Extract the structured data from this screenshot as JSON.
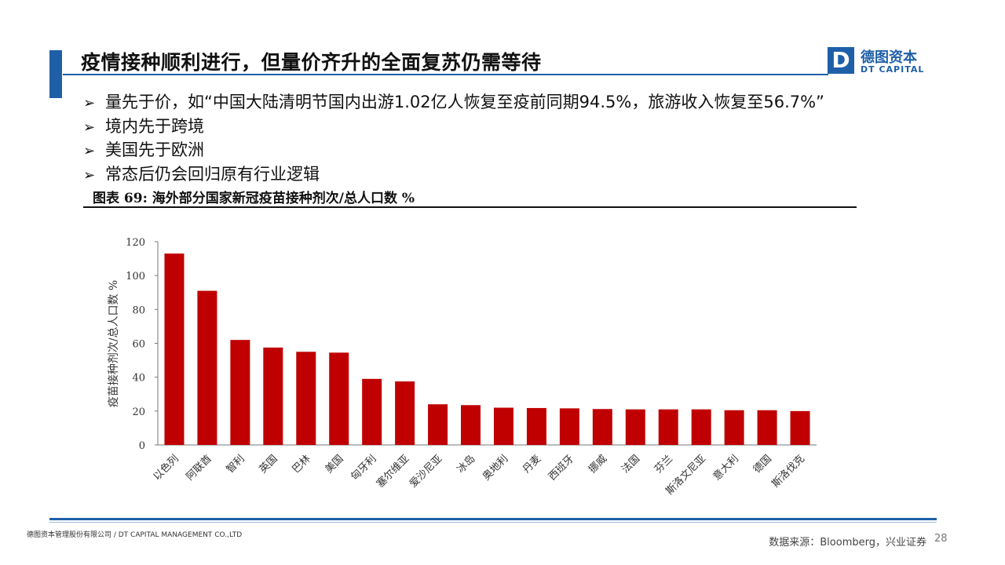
{
  "slide": {
    "title": "疫情接种顺利进行，但量价齐升的全面复苏仍需等待",
    "bullet_marker": "➢",
    "bullets": [
      "量先于价，如“中国大陆清明节国内出游1.02亿人恢复至疫前同期94.5%，旅游收入恢复至56.7%”",
      "境内先于跨境",
      "美国先于欧洲",
      "常态后仍会回归原有行业逻辑"
    ],
    "figure_caption": "图表 69:  海外部分国家新冠疫苗接种剂次/总人口数  %",
    "footer_left": "德图资本管理股份有限公司 / DT CAPITAL MANAGEMENT CO.,LTD",
    "source": "数据来源：Bloomberg，兴业证券",
    "page_number": "28"
  },
  "logo": {
    "mark": "D",
    "cn": "德图资本",
    "en": "DT CAPITAL",
    "color": "#1f5fa8"
  },
  "colors": {
    "accent": "#1f5fa8",
    "bar": "#c00000"
  },
  "chart_data": {
    "type": "bar",
    "ylabel": "疫苗接种剂次/总人口数  %",
    "ylim": [
      0,
      120
    ],
    "yticks": [
      0,
      20,
      40,
      60,
      80,
      100,
      120
    ],
    "categories": [
      "以色列",
      "阿联酋",
      "智利",
      "英国",
      "巴林",
      "美国",
      "匈牙利",
      "塞尔维亚",
      "爱沙尼亚",
      "冰岛",
      "奥地利",
      "丹麦",
      "西班牙",
      "挪威",
      "法国",
      "芬兰",
      "斯洛文尼亚",
      "意大利",
      "德国",
      "斯洛伐克"
    ],
    "values": [
      113,
      91,
      62,
      57.5,
      55,
      54.5,
      39,
      37.5,
      24,
      23.5,
      22,
      21.8,
      21.6,
      21.2,
      21,
      21,
      21,
      20.5,
      20.5,
      20
    ],
    "grid": false,
    "legend": false
  }
}
